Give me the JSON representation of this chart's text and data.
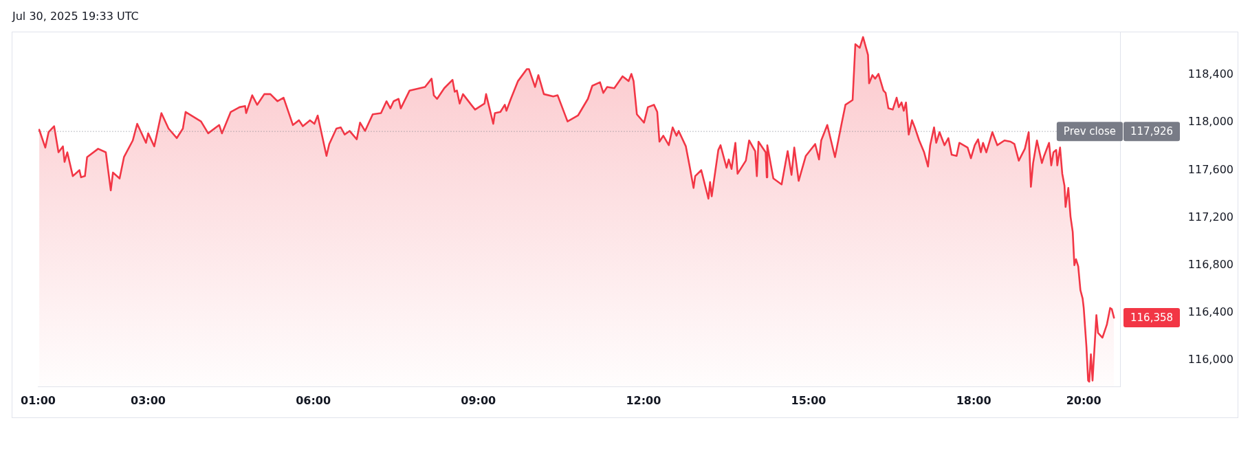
{
  "chart_data": {
    "type": "area",
    "title": "Jul 30, 2025 19:33 UTC",
    "color": "#f23645",
    "marker": "none",
    "x": [
      1.02,
      1.13,
      1.19,
      1.29,
      1.37,
      1.45,
      1.48,
      1.53,
      1.63,
      1.75,
      1.78,
      1.85,
      1.89,
      2.09,
      2.23,
      2.32,
      2.36,
      2.48,
      2.56,
      2.72,
      2.8,
      2.96,
      3.0,
      3.11,
      3.24,
      3.37,
      3.52,
      3.63,
      3.68,
      3.96,
      4.09,
      4.29,
      4.34,
      4.5,
      4.66,
      4.76,
      4.78,
      4.89,
      4.98,
      5.11,
      5.22,
      5.35,
      5.46,
      5.63,
      5.74,
      5.81,
      5.94,
      6.02,
      6.08,
      6.24,
      6.29,
      6.42,
      6.5,
      6.57,
      6.66,
      6.79,
      6.85,
      6.94,
      7.08,
      7.23,
      7.33,
      7.4,
      7.46,
      7.55,
      7.59,
      7.75,
      8.03,
      8.15,
      8.19,
      8.25,
      8.38,
      8.53,
      8.57,
      8.61,
      8.66,
      8.72,
      8.87,
      8.94,
      9.11,
      9.14,
      9.27,
      9.3,
      9.4,
      9.48,
      9.51,
      9.59,
      9.72,
      9.88,
      9.92,
      10.03,
      10.09,
      10.19,
      10.36,
      10.44,
      10.62,
      10.81,
      10.99,
      11.07,
      11.21,
      11.27,
      11.34,
      11.47,
      11.62,
      11.73,
      11.78,
      11.82,
      11.88,
      12.01,
      12.08,
      12.19,
      12.25,
      12.29,
      12.36,
      12.46,
      12.53,
      12.6,
      12.64,
      12.77,
      12.84,
      12.91,
      12.94,
      13.05,
      13.18,
      13.21,
      13.24,
      13.36,
      13.4,
      13.51,
      13.55,
      13.6,
      13.67,
      13.71,
      13.86,
      13.92,
      14.03,
      14.06,
      14.09,
      14.22,
      14.24,
      14.25,
      14.36,
      14.51,
      14.62,
      14.69,
      14.74,
      14.82,
      14.95,
      15.12,
      15.19,
      15.23,
      15.34,
      15.48,
      15.6,
      15.67,
      15.8,
      15.85,
      15.93,
      15.99,
      16.08,
      16.1,
      16.16,
      16.21,
      16.27,
      16.36,
      16.4,
      16.45,
      16.53,
      16.6,
      16.64,
      16.69,
      16.73,
      16.77,
      16.82,
      16.88,
      16.93,
      17.01,
      17.1,
      17.17,
      17.21,
      17.28,
      17.32,
      17.38,
      17.47,
      17.54,
      17.6,
      17.69,
      17.74,
      17.89,
      17.95,
      18.02,
      18.08,
      18.13,
      18.17,
      18.23,
      18.34,
      18.43,
      18.56,
      18.67,
      18.74,
      18.82,
      18.93,
      19.0,
      19.04,
      19.08,
      19.15,
      19.24,
      19.28,
      19.37,
      19.41,
      19.45,
      19.5,
      19.52,
      19.57,
      19.61,
      19.65,
      19.67,
      19.72,
      19.76,
      19.8,
      19.83,
      19.86,
      19.9,
      19.94,
      19.98,
      20.0,
      20.05,
      20.08,
      20.1,
      20.13,
      20.16,
      20.2,
      20.23,
      20.26,
      20.34,
      20.42,
      20.48,
      20.51,
      20.55
    ],
    "values": [
      117940,
      117790,
      117920,
      117970,
      117750,
      117800,
      117670,
      117750,
      117550,
      117600,
      117540,
      117550,
      117710,
      117780,
      117750,
      117430,
      117580,
      117530,
      117710,
      117850,
      117990,
      117830,
      117910,
      117800,
      118080,
      117950,
      117870,
      117950,
      118090,
      118010,
      117910,
      117980,
      117910,
      118090,
      118130,
      118140,
      118080,
      118230,
      118150,
      118240,
      118240,
      118180,
      118210,
      117980,
      118020,
      117970,
      118020,
      117990,
      118060,
      117720,
      117820,
      117950,
      117960,
      117900,
      117930,
      117860,
      118000,
      117930,
      118070,
      118080,
      118180,
      118120,
      118180,
      118200,
      118120,
      118270,
      118300,
      118370,
      118230,
      118200,
      118290,
      118360,
      118260,
      118270,
      118160,
      118240,
      118150,
      118110,
      118160,
      118240,
      117990,
      118080,
      118090,
      118150,
      118100,
      118200,
      118350,
      118450,
      118450,
      118300,
      118400,
      118240,
      118220,
      118230,
      118010,
      118060,
      118200,
      118310,
      118340,
      118250,
      118300,
      118290,
      118390,
      118350,
      118410,
      118350,
      118070,
      118000,
      118130,
      118150,
      118090,
      117840,
      117890,
      117810,
      117960,
      117890,
      117930,
      117800,
      117630,
      117450,
      117550,
      117600,
      117360,
      117500,
      117380,
      117770,
      117810,
      117620,
      117690,
      117610,
      117830,
      117570,
      117680,
      117850,
      117760,
      117550,
      117840,
      117750,
      117540,
      117810,
      117530,
      117480,
      117760,
      117560,
      117790,
      117510,
      117720,
      117820,
      117690,
      117850,
      117980,
      117710,
      117990,
      118150,
      118190,
      118660,
      118630,
      118720,
      118570,
      118330,
      118400,
      118370,
      118410,
      118270,
      118250,
      118120,
      118110,
      118210,
      118130,
      118170,
      118100,
      118170,
      117900,
      118020,
      117960,
      117850,
      117750,
      117630,
      117810,
      117960,
      117830,
      117920,
      117810,
      117870,
      117730,
      117720,
      117830,
      117790,
      117700,
      117810,
      117860,
      117750,
      117830,
      117750,
      117920,
      117810,
      117850,
      117840,
      117820,
      117680,
      117780,
      117920,
      117460,
      117660,
      117850,
      117660,
      117720,
      117830,
      117640,
      117750,
      117770,
      117640,
      117790,
      117570,
      117470,
      117290,
      117450,
      117210,
      117080,
      116800,
      116850,
      116790,
      116590,
      116520,
      116440,
      116110,
      115830,
      115820,
      116050,
      115830,
      116140,
      116380,
      116230,
      116190,
      116300,
      116440,
      116430,
      116358
    ],
    "value_labels": [
      null,
      null,
      null,
      null,
      null,
      null,
      null,
      null,
      null,
      null,
      null,
      null,
      null,
      null,
      null,
      null,
      null,
      null,
      null,
      null,
      null,
      null,
      null,
      null,
      null,
      null,
      null,
      null,
      null,
      null,
      null,
      null,
      null,
      null,
      null,
      null,
      null,
      null,
      null,
      null,
      null,
      null,
      null,
      null,
      null,
      null,
      null,
      null,
      null,
      null,
      null,
      null,
      null,
      null,
      null,
      null,
      null,
      null,
      null,
      null,
      null,
      null,
      null,
      null,
      null,
      null,
      null,
      null,
      null,
      null,
      null,
      null,
      null,
      null,
      null,
      null,
      null,
      null,
      null,
      null,
      null,
      null,
      null,
      null,
      null,
      null,
      null,
      null,
      null,
      null,
      null,
      null,
      null,
      null,
      null,
      null,
      null,
      null,
      null,
      null,
      null,
      null,
      null,
      null,
      null,
      null,
      null,
      null,
      null,
      null,
      null,
      null,
      null,
      null,
      null,
      null,
      null,
      null,
      null,
      null,
      null,
      null,
      null,
      null,
      null,
      null,
      null,
      null,
      null,
      null,
      null,
      null,
      null,
      null,
      null,
      null,
      null,
      null,
      null,
      null,
      null,
      null,
      null,
      null,
      null,
      null,
      null,
      null,
      null,
      null,
      null,
      null,
      null,
      null,
      null,
      null,
      null,
      null,
      null,
      null,
      null,
      null,
      null,
      null,
      null,
      null,
      null,
      null,
      null,
      null,
      null,
      null,
      null,
      null,
      null,
      null,
      null,
      null,
      null,
      null,
      null,
      null,
      null,
      null,
      null,
      null,
      null,
      null,
      null,
      null,
      null,
      null,
      null,
      null,
      null,
      null,
      null,
      null,
      null,
      null,
      null,
      null,
      null,
      null,
      null,
      null,
      null,
      null,
      null,
      null,
      null,
      null,
      null,
      null,
      null,
      null,
      null,
      null,
      null,
      null,
      null,
      null,
      null,
      null,
      null,
      null,
      null,
      null,
      null,
      null,
      null,
      null,
      null,
      null,
      null,
      null,
      null,
      "116,358"
    ],
    "xlim": [
      1,
      20.66
    ],
    "xticks": [
      {
        "value": 1,
        "label": "01:00"
      },
      {
        "value": 3,
        "label": "03:00"
      },
      {
        "value": 6,
        "label": "06:00"
      },
      {
        "value": 9,
        "label": "09:00"
      },
      {
        "value": 12,
        "label": "12:00"
      },
      {
        "value": 15,
        "label": "15:00"
      },
      {
        "value": 18,
        "label": "18:00"
      },
      {
        "value": 20,
        "label": "20:00"
      }
    ],
    "ylim": [
      115780,
      118760
    ],
    "yticks": [
      {
        "value": 116000,
        "label": "116,000"
      },
      {
        "value": 116400,
        "label": "116,400"
      },
      {
        "value": 116800,
        "label": "116,800"
      },
      {
        "value": 117200,
        "label": "117,200"
      },
      {
        "value": 117600,
        "label": "117,600"
      },
      {
        "value": 118000,
        "label": "118,000"
      },
      {
        "value": 118400,
        "label": "118,400"
      }
    ],
    "ref_lines": [
      {
        "axis": "y",
        "value": 117926,
        "label": "Prev close",
        "color": "#787b86",
        "line_style": "dotted"
      }
    ],
    "annotations": [
      "117,926"
    ]
  }
}
